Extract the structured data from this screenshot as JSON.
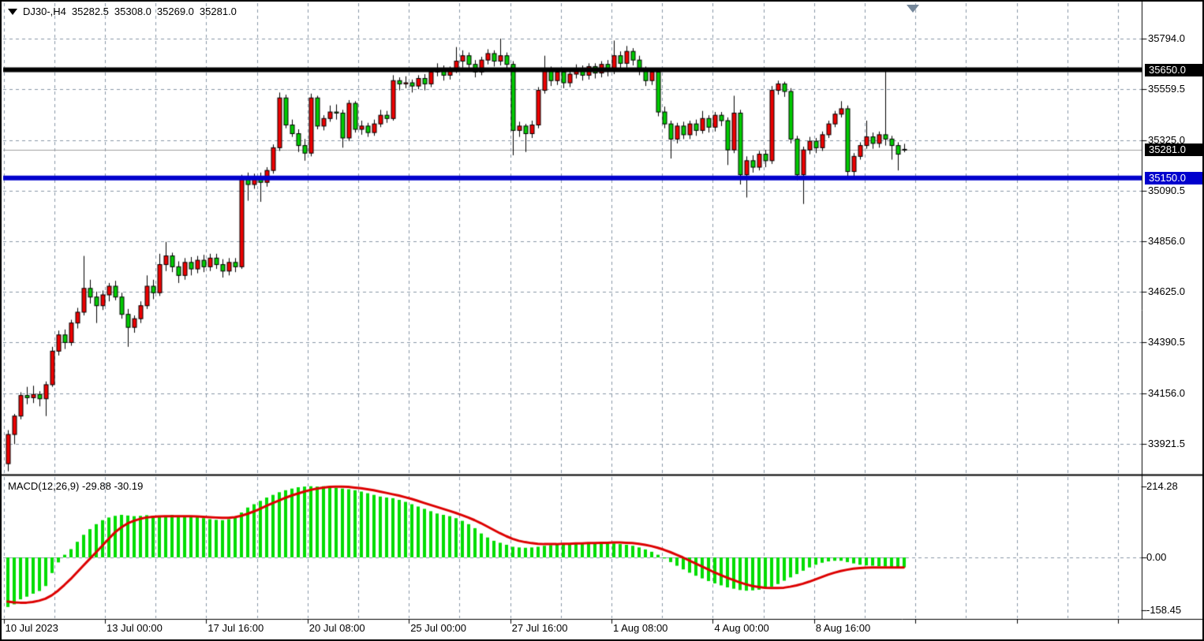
{
  "title_bar": {
    "symbol_period": "DJ30-,H4",
    "open": "35282.5",
    "high": "35308.0",
    "low": "35269.0",
    "close": "35281.0"
  },
  "price_axis": {
    "ticks": [
      "35794.0",
      "35559.5",
      "35325.0",
      "35090.5",
      "34856.0",
      "34625.0",
      "34390.5",
      "34156.0",
      "33921.5"
    ],
    "badges": [
      {
        "text": "35650.0",
        "bg": "#000000"
      },
      {
        "text": "35281.0",
        "bg": "#000000"
      },
      {
        "text": "35150.0",
        "bg": "#0000cd"
      }
    ]
  },
  "time_axis": {
    "labels": [
      "10 Jul 2023",
      "13 Jul 00:00",
      "17 Jul 16:00",
      "20 Jul 08:00",
      "25 Jul 00:00",
      "27 Jul 16:00",
      "1 Aug 08:00",
      "4 Aug 00:00",
      "8 Aug 16:00"
    ]
  },
  "macd_panel": {
    "label": "MACD(12,26,9)",
    "macd_value": "-29.88",
    "signal_value": "-30.19",
    "ticks": [
      "214.28",
      "0.00",
      "-158.45"
    ]
  },
  "colors": {
    "bull_body": "#ee0000",
    "bear_body": "#00cc00",
    "wick": "#000000",
    "grid": "#8896a6",
    "resistance_line": "#000000",
    "support_line": "#0000cd",
    "current_price_line": "#a0a0a0",
    "macd_histogram": "#00dd00",
    "macd_signal": "#dd0000",
    "badge_text": "#ffffff",
    "shift_marker": "#75879a"
  },
  "chart_data": [
    {
      "type": "candlestick",
      "title": "DJ30-,H4",
      "symbol": "DJ30-",
      "timeframe": "H4",
      "current_bar": {
        "open": 35282.5,
        "high": 35308.0,
        "low": 35269.0,
        "close": 35281.0
      },
      "y_ticks": [
        35794.0,
        35559.5,
        35325.0,
        35090.5,
        34856.0,
        34625.0,
        34390.5,
        34156.0,
        33921.5
      ],
      "ylim": [
        33790,
        35870
      ],
      "x_tick_labels": [
        "10 Jul 2023",
        "13 Jul 00:00",
        "17 Jul 16:00",
        "20 Jul 08:00",
        "25 Jul 00:00",
        "27 Jul 16:00",
        "1 Aug 08:00",
        "4 Aug 00:00",
        "8 Aug 16:00"
      ],
      "hlines": [
        {
          "name": "resistance",
          "value": 35650.0
        },
        {
          "name": "support",
          "value": 35150.0
        },
        {
          "name": "current_price",
          "value": 35281.0
        }
      ],
      "grid": true,
      "legend_position": "none",
      "candles_format": [
        "open",
        "high",
        "low",
        "close"
      ],
      "candles": [
        [
          33830,
          33985,
          33795,
          33965
        ],
        [
          33965,
          34060,
          33920,
          34050
        ],
        [
          34050,
          34160,
          34035,
          34145
        ],
        [
          34145,
          34185,
          34105,
          34135
        ],
        [
          34135,
          34190,
          34110,
          34150
        ],
        [
          34150,
          34165,
          34095,
          34130
        ],
        [
          34130,
          34210,
          34050,
          34195
        ],
        [
          34195,
          34370,
          34185,
          34350
        ],
        [
          34350,
          34445,
          34330,
          34425
        ],
        [
          34425,
          34450,
          34360,
          34390
        ],
        [
          34390,
          34495,
          34375,
          34480
        ],
        [
          34480,
          34550,
          34455,
          34530
        ],
        [
          34530,
          34790,
          34515,
          34640
        ],
        [
          34640,
          34680,
          34570,
          34600
        ],
        [
          34600,
          34625,
          34480,
          34560
        ],
        [
          34560,
          34630,
          34540,
          34610
        ],
        [
          34610,
          34665,
          34580,
          34650
        ],
        [
          34650,
          34675,
          34585,
          34600
        ],
        [
          34600,
          34620,
          34500,
          34520
        ],
        [
          34520,
          34545,
          34370,
          34460
        ],
        [
          34460,
          34515,
          34435,
          34500
        ],
        [
          34500,
          34580,
          34480,
          34560
        ],
        [
          34560,
          34700,
          34545,
          34650
        ],
        [
          34650,
          34680,
          34590,
          34620
        ],
        [
          34620,
          34800,
          34605,
          34750
        ],
        [
          34750,
          34855,
          34720,
          34790
        ],
        [
          34790,
          34805,
          34715,
          34740
        ],
        [
          34740,
          34765,
          34665,
          34700
        ],
        [
          34700,
          34780,
          34680,
          34760
        ],
        [
          34760,
          34785,
          34700,
          34730
        ],
        [
          34730,
          34790,
          34710,
          34770
        ],
        [
          34770,
          34795,
          34715,
          34740
        ],
        [
          34740,
          34800,
          34720,
          34780
        ],
        [
          34780,
          34800,
          34730,
          34750
        ],
        [
          34750,
          34775,
          34690,
          34720
        ],
        [
          34720,
          34780,
          34700,
          34760
        ],
        [
          34760,
          34780,
          34715,
          34740
        ],
        [
          34740,
          35165,
          34730,
          35155
        ],
        [
          35155,
          35175,
          35045,
          35120
        ],
        [
          35120,
          35170,
          35100,
          35155
        ],
        [
          35155,
          35175,
          35040,
          35130
        ],
        [
          35130,
          35200,
          35110,
          35185
        ],
        [
          35185,
          35305,
          35170,
          35290
        ],
        [
          35290,
          35545,
          35275,
          35520
        ],
        [
          35520,
          35535,
          35380,
          35395
        ],
        [
          35395,
          35420,
          35340,
          35355
        ],
        [
          35355,
          35375,
          35270,
          35300
        ],
        [
          35300,
          35330,
          35230,
          35265
        ],
        [
          35265,
          35540,
          35250,
          35520
        ],
        [
          35520,
          35530,
          35375,
          35390
        ],
        [
          35390,
          35440,
          35370,
          35425
        ],
        [
          35425,
          35485,
          35410,
          35455
        ],
        [
          35455,
          35490,
          35420,
          35450
        ],
        [
          35450,
          35465,
          35290,
          35335
        ],
        [
          35335,
          35510,
          35320,
          35495
        ],
        [
          35495,
          35505,
          35360,
          35375
        ],
        [
          35375,
          35415,
          35350,
          35390
        ],
        [
          35390,
          35405,
          35340,
          35360
        ],
        [
          35360,
          35420,
          35345,
          35400
        ],
        [
          35400,
          35465,
          35385,
          35440
        ],
        [
          35440,
          35460,
          35405,
          35425
        ],
        [
          35425,
          35625,
          35415,
          35600
        ],
        [
          35600,
          35615,
          35555,
          35585
        ],
        [
          35585,
          35620,
          35565,
          35590
        ],
        [
          35590,
          35605,
          35545,
          35575
        ],
        [
          35575,
          35625,
          35560,
          35610
        ],
        [
          35610,
          35630,
          35555,
          35585
        ],
        [
          35585,
          35655,
          35570,
          35640
        ],
        [
          35640,
          35680,
          35620,
          35655
        ],
        [
          35655,
          35670,
          35600,
          35625
        ],
        [
          35625,
          35665,
          35605,
          35650
        ],
        [
          35650,
          35755,
          35635,
          35690
        ],
        [
          35690,
          35740,
          35660,
          35715
        ],
        [
          35715,
          35730,
          35650,
          35675
        ],
        [
          35675,
          35695,
          35615,
          35640
        ],
        [
          35640,
          35710,
          35625,
          35695
        ],
        [
          35695,
          35745,
          35675,
          35725
        ],
        [
          35725,
          35740,
          35665,
          35690
        ],
        [
          35690,
          35794,
          35670,
          35715
        ],
        [
          35715,
          35730,
          35655,
          35675
        ],
        [
          35675,
          35690,
          35255,
          35370
        ],
        [
          35370,
          35410,
          35340,
          35390
        ],
        [
          35390,
          35400,
          35270,
          35355
        ],
        [
          35355,
          35415,
          35335,
          35395
        ],
        [
          35395,
          35570,
          35380,
          35555
        ],
        [
          35555,
          35715,
          35540,
          35645
        ],
        [
          35645,
          35665,
          35575,
          35600
        ],
        [
          35600,
          35655,
          35580,
          35640
        ],
        [
          35640,
          35650,
          35565,
          35590
        ],
        [
          35590,
          35645,
          35570,
          35630
        ],
        [
          35630,
          35675,
          35610,
          35655
        ],
        [
          35655,
          35670,
          35600,
          35625
        ],
        [
          35625,
          35680,
          35605,
          35665
        ],
        [
          35665,
          35680,
          35610,
          35635
        ],
        [
          35635,
          35690,
          35615,
          35675
        ],
        [
          35675,
          35695,
          35620,
          35645
        ],
        [
          35645,
          35785,
          35630,
          35715
        ],
        [
          35715,
          35735,
          35655,
          35680
        ],
        [
          35680,
          35760,
          35660,
          35735
        ],
        [
          35735,
          35750,
          35670,
          35695
        ],
        [
          35695,
          35715,
          35625,
          35645
        ],
        [
          35645,
          35665,
          35575,
          35600
        ],
        [
          35600,
          35655,
          35580,
          35640
        ],
        [
          35640,
          35650,
          35435,
          35455
        ],
        [
          35455,
          35480,
          35380,
          35400
        ],
        [
          35400,
          35415,
          35240,
          35330
        ],
        [
          35330,
          35405,
          35310,
          35390
        ],
        [
          35390,
          35410,
          35330,
          35350
        ],
        [
          35350,
          35415,
          35330,
          35400
        ],
        [
          35400,
          35420,
          35345,
          35370
        ],
        [
          35370,
          35460,
          35355,
          35425
        ],
        [
          35425,
          35440,
          35360,
          35385
        ],
        [
          35385,
          35455,
          35365,
          35440
        ],
        [
          35440,
          35455,
          35390,
          35415
        ],
        [
          35415,
          35430,
          35210,
          35280
        ],
        [
          35280,
          35530,
          35265,
          35450
        ],
        [
          35450,
          35465,
          35120,
          35165
        ],
        [
          35165,
          35250,
          35060,
          35230
        ],
        [
          35230,
          35255,
          35175,
          35200
        ],
        [
          35200,
          35275,
          35185,
          35260
        ],
        [
          35260,
          35280,
          35200,
          35230
        ],
        [
          35230,
          35575,
          35215,
          35555
        ],
        [
          35555,
          35600,
          35535,
          35585
        ],
        [
          35585,
          35595,
          35525,
          35550
        ],
        [
          35550,
          35565,
          35310,
          35330
        ],
        [
          35330,
          35345,
          35140,
          35165
        ],
        [
          35165,
          35295,
          35030,
          35280
        ],
        [
          35280,
          35340,
          35260,
          35320
        ],
        [
          35320,
          35335,
          35265,
          35290
        ],
        [
          35290,
          35365,
          35275,
          35350
        ],
        [
          35350,
          35415,
          35335,
          35400
        ],
        [
          35400,
          35460,
          35385,
          35445
        ],
        [
          35445,
          35505,
          35430,
          35470
        ],
        [
          35470,
          35485,
          35150,
          35180
        ],
        [
          35180,
          35265,
          35160,
          35250
        ],
        [
          35250,
          35315,
          35235,
          35300
        ],
        [
          35300,
          35415,
          35285,
          35340
        ],
        [
          35340,
          35360,
          35285,
          35310
        ],
        [
          35310,
          35365,
          35290,
          35350
        ],
        [
          35350,
          35655,
          35300,
          35330
        ],
        [
          35330,
          35345,
          35235,
          35300
        ],
        [
          35300,
          35315,
          35185,
          35260
        ],
        [
          35282.5,
          35308,
          35269,
          35281
        ]
      ]
    },
    {
      "type": "bar",
      "title": "MACD(12,26,9)",
      "y_ticks": [
        214.28,
        0.0,
        -158.45
      ],
      "ylim": [
        -175,
        230
      ],
      "last_macd": -29.88,
      "last_signal": -30.19,
      "histogram": [
        -149,
        -141,
        -126,
        -118,
        -109,
        -101,
        -86,
        -47,
        -15,
        8,
        25,
        47,
        68,
        85,
        100,
        112,
        120,
        125,
        128,
        126,
        124,
        125,
        127,
        125,
        123,
        125,
        128,
        126,
        124,
        125,
        122,
        118,
        115,
        113,
        112,
        115,
        120,
        135,
        150,
        160,
        170,
        180,
        188,
        196,
        202,
        207,
        211,
        213,
        214,
        213,
        214,
        212,
        209,
        207,
        205,
        202,
        198,
        193,
        188,
        183,
        180,
        178,
        173,
        167,
        160,
        153,
        146,
        139,
        132,
        128,
        124,
        118,
        110,
        100,
        88,
        72,
        60,
        50,
        44,
        38,
        32,
        30,
        29,
        30,
        32,
        35,
        37,
        38,
        39,
        40,
        41,
        40,
        41,
        42,
        42,
        41,
        42,
        40,
        38,
        35,
        30,
        24,
        17,
        8,
        -3,
        -14,
        -25,
        -36,
        -46,
        -55,
        -63,
        -71,
        -78,
        -84,
        -90,
        -94,
        -98,
        -100,
        -99,
        -97,
        -94,
        -88,
        -80,
        -70,
        -60,
        -50,
        -40,
        -30,
        -22,
        -16,
        -12,
        -10,
        -10,
        -14,
        -18,
        -22,
        -24,
        -25,
        -26,
        -27,
        -28,
        -29,
        -29.88
      ],
      "signal": [
        -133,
        -135,
        -136,
        -136,
        -134,
        -130,
        -124,
        -114,
        -100,
        -83,
        -65,
        -45,
        -25,
        -5,
        15,
        35,
        55,
        75,
        90,
        102,
        110,
        116,
        120,
        122,
        123,
        124,
        124,
        124,
        124,
        124,
        123,
        122,
        121,
        120,
        119,
        119,
        121,
        125,
        131,
        138,
        146,
        155,
        163,
        171,
        179,
        186,
        192,
        198,
        203,
        207,
        210,
        212,
        213,
        213,
        212,
        210,
        208,
        205,
        202,
        198,
        194,
        190,
        186,
        181,
        176,
        170,
        164,
        158,
        152,
        146,
        140,
        134,
        127,
        120,
        112,
        103,
        93,
        83,
        73,
        64,
        56,
        50,
        46,
        43,
        41,
        40,
        40,
        40,
        41,
        41,
        42,
        42,
        43,
        43,
        44,
        44,
        45,
        45,
        44,
        43,
        41,
        38,
        34,
        29,
        23,
        16,
        8,
        0,
        -9,
        -18,
        -27,
        -36,
        -45,
        -53,
        -61,
        -68,
        -75,
        -81,
        -86,
        -89,
        -91,
        -92,
        -92,
        -91,
        -88,
        -84,
        -79,
        -73,
        -66,
        -59,
        -52,
        -46,
        -41,
        -37,
        -34,
        -32,
        -31,
        -30,
        -30,
        -30,
        -30,
        -30,
        -30.19
      ]
    }
  ]
}
